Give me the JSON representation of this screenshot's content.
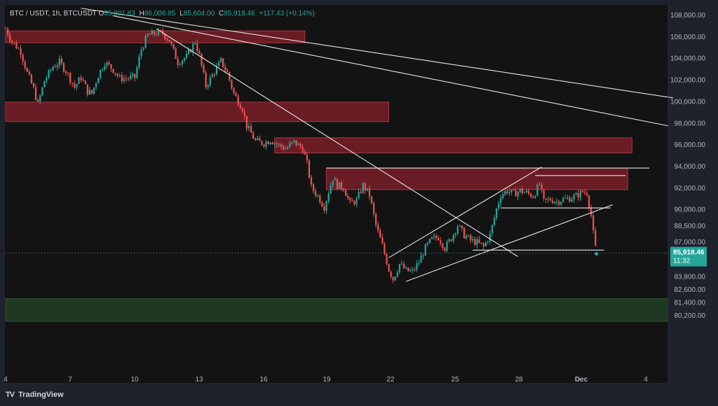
{
  "header": {
    "symbol": "BTC / USDT, 1h, BTCUSDT",
    "open_label": "O",
    "open": "85,801.83",
    "high_label": "H",
    "high": "86,006.85",
    "low_label": "L",
    "low": "85,604.00",
    "close_label": "C",
    "close": "85,918.46",
    "change": "+117.43 (+0.14%)"
  },
  "price_tag": {
    "price": "85,918.46",
    "countdown": "11:32"
  },
  "brand": {
    "logo": "TV",
    "name": "TradingView"
  },
  "colors": {
    "background": "#131313",
    "up": "#26a69a",
    "down": "#ef5350",
    "zone_red": "#7a1e28",
    "zone_green": "#1f3a22",
    "trendline": "#e6e6e6"
  },
  "chart_data": {
    "type": "candlestick",
    "timeframe": "1h",
    "x_ticks": [
      "4",
      "7",
      "10",
      "13",
      "16",
      "19",
      "22",
      "25",
      "28",
      "Dec",
      "4"
    ],
    "y_ticks": [
      "108,000.00",
      "106,000.00",
      "104,000.00",
      "102,000.00",
      "100,000.00",
      "98,000.00",
      "96,000.00",
      "94,000.00",
      "92,000.00",
      "90,000.00",
      "88,500.00",
      "87,000.00",
      "83,800.00",
      "82,600.00",
      "81,400.00",
      "80,200.00"
    ],
    "ylim": [
      79600,
      108600
    ],
    "last_price": 85918.46,
    "price_path": [
      {
        "day": 4.0,
        "price": 106700
      },
      {
        "day": 4.3,
        "price": 105500
      },
      {
        "day": 4.7,
        "price": 104600
      },
      {
        "day": 5.0,
        "price": 102600
      },
      {
        "day": 5.3,
        "price": 101100
      },
      {
        "day": 5.5,
        "price": 99700
      },
      {
        "day": 5.8,
        "price": 101900
      },
      {
        "day": 6.2,
        "price": 103200
      },
      {
        "day": 6.5,
        "price": 103600
      },
      {
        "day": 6.8,
        "price": 102800
      },
      {
        "day": 7.2,
        "price": 101300
      },
      {
        "day": 7.5,
        "price": 102200
      },
      {
        "day": 7.8,
        "price": 100900
      },
      {
        "day": 8.0,
        "price": 100700
      },
      {
        "day": 8.3,
        "price": 102400
      },
      {
        "day": 8.6,
        "price": 103600
      },
      {
        "day": 9.0,
        "price": 102900
      },
      {
        "day": 9.3,
        "price": 102100
      },
      {
        "day": 9.6,
        "price": 102100
      },
      {
        "day": 10.0,
        "price": 102200
      },
      {
        "day": 10.3,
        "price": 104800
      },
      {
        "day": 10.6,
        "price": 106100
      },
      {
        "day": 11.0,
        "price": 106300
      },
      {
        "day": 11.3,
        "price": 106300
      },
      {
        "day": 11.6,
        "price": 105600
      },
      {
        "day": 12.0,
        "price": 103600
      },
      {
        "day": 12.4,
        "price": 104100
      },
      {
        "day": 12.8,
        "price": 105500
      },
      {
        "day": 13.0,
        "price": 104200
      },
      {
        "day": 13.3,
        "price": 101400
      },
      {
        "day": 13.6,
        "price": 102400
      },
      {
        "day": 14.0,
        "price": 103700
      },
      {
        "day": 14.3,
        "price": 102600
      },
      {
        "day": 14.6,
        "price": 100700
      },
      {
        "day": 15.0,
        "price": 99300
      },
      {
        "day": 15.2,
        "price": 97700
      },
      {
        "day": 15.6,
        "price": 96300
      },
      {
        "day": 16.0,
        "price": 96100
      },
      {
        "day": 16.3,
        "price": 96400
      },
      {
        "day": 16.7,
        "price": 95900
      },
      {
        "day": 17.0,
        "price": 95600
      },
      {
        "day": 17.4,
        "price": 96200
      },
      {
        "day": 17.8,
        "price": 95600
      },
      {
        "day": 18.0,
        "price": 94200
      },
      {
        "day": 18.2,
        "price": 92000
      },
      {
        "day": 18.5,
        "price": 91200
      },
      {
        "day": 18.8,
        "price": 90200
      },
      {
        "day": 19.0,
        "price": 91600
      },
      {
        "day": 19.2,
        "price": 92900
      },
      {
        "day": 19.4,
        "price": 92200
      },
      {
        "day": 19.7,
        "price": 92000
      },
      {
        "day": 20.0,
        "price": 90500
      },
      {
        "day": 20.3,
        "price": 90800
      },
      {
        "day": 20.6,
        "price": 92200
      },
      {
        "day": 20.9,
        "price": 91300
      },
      {
        "day": 21.2,
        "price": 88500
      },
      {
        "day": 21.5,
        "price": 86600
      },
      {
        "day": 21.8,
        "price": 84400
      },
      {
        "day": 22.0,
        "price": 83500
      },
      {
        "day": 22.3,
        "price": 84900
      },
      {
        "day": 22.6,
        "price": 84300
      },
      {
        "day": 22.9,
        "price": 84200
      },
      {
        "day": 23.2,
        "price": 85100
      },
      {
        "day": 23.5,
        "price": 86400
      },
      {
        "day": 23.8,
        "price": 87200
      },
      {
        "day": 24.1,
        "price": 87400
      },
      {
        "day": 24.4,
        "price": 86400
      },
      {
        "day": 24.7,
        "price": 87300
      },
      {
        "day": 25.0,
        "price": 88500
      },
      {
        "day": 25.3,
        "price": 87600
      },
      {
        "day": 25.6,
        "price": 87100
      },
      {
        "day": 25.9,
        "price": 86900
      },
      {
        "day": 26.2,
        "price": 86500
      },
      {
        "day": 26.5,
        "price": 87600
      },
      {
        "day": 26.8,
        "price": 90000
      },
      {
        "day": 27.0,
        "price": 91300
      },
      {
        "day": 27.3,
        "price": 91700
      },
      {
        "day": 27.6,
        "price": 91400
      },
      {
        "day": 27.9,
        "price": 91700
      },
      {
        "day": 28.2,
        "price": 91500
      },
      {
        "day": 28.5,
        "price": 91200
      },
      {
        "day": 28.8,
        "price": 92300
      },
      {
        "day": 29.0,
        "price": 90700
      },
      {
        "day": 29.3,
        "price": 90900
      },
      {
        "day": 29.6,
        "price": 90700
      },
      {
        "day": 29.9,
        "price": 90900
      },
      {
        "day": 30.2,
        "price": 91000
      },
      {
        "day": 30.5,
        "price": 91200
      },
      {
        "day": 30.8,
        "price": 91600
      },
      {
        "day": 31.0,
        "price": 91500
      },
      {
        "day": 31.2,
        "price": 89400
      },
      {
        "day": 31.35,
        "price": 86900
      },
      {
        "day": 31.45,
        "price": 85918.46
      }
    ],
    "zones": [
      {
        "type": "supply",
        "from_day": 4.0,
        "to_day": 17.9,
        "bottom": 105400,
        "top": 106500
      },
      {
        "type": "supply",
        "from_day": 4.0,
        "to_day": 21.8,
        "bottom": 98100,
        "top": 99900
      },
      {
        "type": "supply",
        "from_day": 16.5,
        "to_day": 33.1,
        "bottom": 95200,
        "top": 96600
      },
      {
        "type": "supply",
        "from_day": 18.9,
        "to_day": 32.9,
        "bottom": 91800,
        "top": 93800
      },
      {
        "type": "demand",
        "from_day": 4.0,
        "to_day": 35.0,
        "bottom": 79600,
        "top": 81700
      }
    ],
    "lines": [
      {
        "name": "long downtrend upper",
        "from": [
          7.5,
          108600
        ],
        "to": [
          35.0,
          100300
        ]
      },
      {
        "name": "long downtrend lower",
        "from": [
          9.0,
          107900
        ],
        "to": [
          34.8,
          97700
        ]
      },
      {
        "name": "steep downtrend",
        "from": [
          11.0,
          106700
        ],
        "to": [
          27.8,
          85600
        ]
      },
      {
        "name": "channel top",
        "from": [
          21.8,
          85500
        ],
        "to": [
          28.9,
          93900
        ]
      },
      {
        "name": "channel bottom",
        "from": [
          22.6,
          83300
        ],
        "to": [
          32.2,
          90400
        ]
      },
      {
        "name": "resistance",
        "from": [
          18.9,
          93800
        ],
        "to": [
          33.9,
          93800
        ]
      },
      {
        "name": "range top",
        "from": [
          28.6,
          93100
        ],
        "to": [
          32.8,
          93100
        ]
      },
      {
        "name": "range bottom",
        "from": [
          27.0,
          90100
        ],
        "to": [
          32.1,
          90100
        ]
      },
      {
        "name": "support",
        "from": [
          25.7,
          86200
        ],
        "to": [
          31.8,
          86200
        ]
      }
    ]
  }
}
